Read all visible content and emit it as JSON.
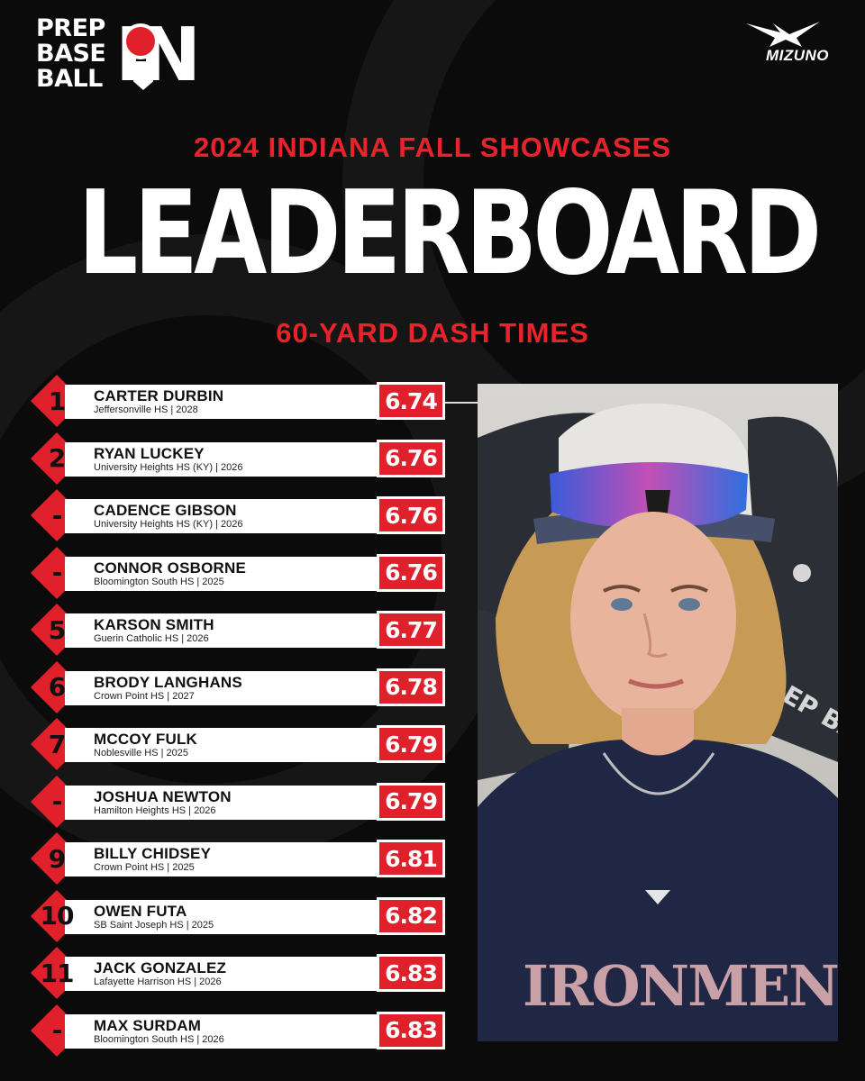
{
  "brand": {
    "logo_lines": [
      "PREP",
      "BASE",
      "BALL"
    ],
    "logo_state": "IN",
    "sponsor": "MIZUNO"
  },
  "header": {
    "event": "2024 INDIANA FALL SHOWCASES",
    "title": "LEADERBOARD",
    "category": "60-YARD DASH TIMES"
  },
  "colors": {
    "accent": "#e0202a",
    "background": "#0b0b0b",
    "card": "#ffffff"
  },
  "leaderboard": [
    {
      "rank": "1",
      "name": "CARTER DURBIN",
      "meta": "Jeffersonville HS | 2028",
      "time": "6.74"
    },
    {
      "rank": "2",
      "name": "RYAN LUCKEY",
      "meta": "University Heights HS (KY) | 2026",
      "time": "6.76"
    },
    {
      "rank": "-",
      "name": "CADENCE GIBSON",
      "meta": "University Heights HS (KY) | 2026",
      "time": "6.76"
    },
    {
      "rank": "-",
      "name": "CONNOR OSBORNE",
      "meta": "Bloomington South HS | 2025",
      "time": "6.76"
    },
    {
      "rank": "5",
      "name": "KARSON SMITH",
      "meta": "Guerin Catholic HS | 2026",
      "time": "6.77"
    },
    {
      "rank": "6",
      "name": "BRODY LANGHANS",
      "meta": "Crown Point HS | 2027",
      "time": "6.78"
    },
    {
      "rank": "7",
      "name": "MCCOY FULK",
      "meta": "Noblesville HS | 2025",
      "time": "6.79"
    },
    {
      "rank": "-",
      "name": "JOSHUA NEWTON",
      "meta": "Hamilton Heights HS | 2026",
      "time": "6.79"
    },
    {
      "rank": "9",
      "name": "BILLY CHIDSEY",
      "meta": "Crown Point HS | 2025",
      "time": "6.81"
    },
    {
      "rank": "10",
      "name": "OWEN FUTA",
      "meta": "SB Saint Joseph HS | 2025",
      "time": "6.82"
    },
    {
      "rank": "11",
      "name": "JACK GONZALEZ",
      "meta": "Lafayette Harrison HS | 2026",
      "time": "6.83"
    },
    {
      "rank": "-",
      "name": "MAX SURDAM",
      "meta": "Bloomington South HS | 2026",
      "time": "6.83"
    }
  ],
  "photo": {
    "jersey_text": "IRONMEN",
    "backdrop_text": "PREP BASEBALL"
  }
}
